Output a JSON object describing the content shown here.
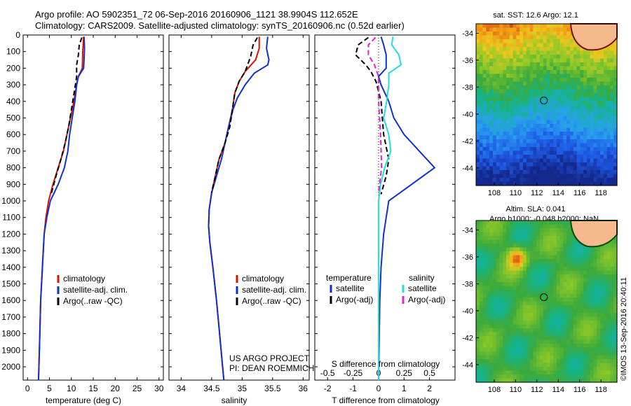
{
  "header": {
    "line1": "Argo profile: AO 5902351_72 06-Sep-2016 20160906_1121 38.9904S 112.652E",
    "line2": "Climatology: CARS2009. Satellite-adjusted climatology: synTS_20160906.nc (0.52d earlier)"
  },
  "colors": {
    "climatology": "#dd1100",
    "satellite": "#1030d0",
    "argo": "#000000",
    "salinity_sat": "#22dddd",
    "salinity_argo": "#dd22dd",
    "land": "#f6b98c"
  },
  "credit": {
    "project": "US ARGO PROJECT",
    "pi": "PI: DEAN ROEMMICH",
    "watermark": "©IMOS 13-Sep-2016 20:40:11"
  },
  "chart_data": [
    {
      "type": "line",
      "id": "temperature",
      "xlabel": "temperature (deg C)",
      "xlim": [
        -1,
        31
      ],
      "ylim": [
        2080,
        0
      ],
      "xticks": [
        "0",
        "5",
        "10",
        "15",
        "20",
        "25",
        "30"
      ],
      "yticks": [
        "0",
        "100",
        "200",
        "300",
        "400",
        "500",
        "600",
        "700",
        "800",
        "900",
        "1000",
        "1100",
        "1200",
        "1300",
        "1400",
        "1500",
        "1600",
        "1700",
        "1800",
        "1900",
        "2000"
      ],
      "legend": [
        "climatology",
        "satellite-adj. clim.",
        "Argo(..raw -QC)"
      ],
      "series": [
        {
          "name": "climatology",
          "points": [
            [
              12.8,
              10
            ],
            [
              12.6,
              100
            ],
            [
              12.5,
              200
            ],
            [
              11.6,
              250
            ],
            [
              11.2,
              300
            ],
            [
              10.6,
              400
            ],
            [
              9.8,
              500
            ],
            [
              9.0,
              600
            ],
            [
              8.2,
              700
            ],
            [
              7.0,
              800
            ],
            [
              5.8,
              900
            ],
            [
              4.8,
              1000
            ],
            [
              4.2,
              1100
            ],
            [
              3.8,
              1200
            ],
            [
              3.4,
              1400
            ],
            [
              3.0,
              1600
            ],
            [
              2.8,
              1800
            ],
            [
              2.6,
              2000
            ],
            [
              2.5,
              2080
            ]
          ]
        },
        {
          "name": "satellite-adj. clim.",
          "points": [
            [
              12.9,
              10
            ],
            [
              13.0,
              80
            ],
            [
              12.9,
              150
            ],
            [
              12.8,
              200
            ],
            [
              11.6,
              250
            ],
            [
              11.2,
              300
            ],
            [
              10.8,
              400
            ],
            [
              10.2,
              500
            ],
            [
              9.6,
              600
            ],
            [
              9.2,
              700
            ],
            [
              8.4,
              800
            ],
            [
              7.0,
              900
            ],
            [
              5.2,
              1000
            ],
            [
              4.4,
              1100
            ],
            [
              3.8,
              1200
            ],
            [
              3.4,
              1400
            ],
            [
              3.0,
              1600
            ],
            [
              2.8,
              1800
            ],
            [
              2.6,
              2000
            ],
            [
              2.5,
              2080
            ]
          ]
        },
        {
          "name": "Argo(..raw -QC)",
          "points": [
            [
              12.4,
              15
            ],
            [
              11.8,
              60
            ],
            [
              11.6,
              120
            ],
            [
              11.2,
              180
            ],
            [
              11.2,
              250
            ],
            [
              10.8,
              320
            ],
            [
              10.0,
              450
            ],
            [
              9.4,
              550
            ],
            [
              8.6,
              650
            ],
            [
              7.6,
              750
            ],
            [
              6.5,
              850
            ],
            [
              5.4,
              960
            ]
          ]
        }
      ]
    },
    {
      "type": "line",
      "id": "salinity",
      "xlabel": "salinity",
      "xlim": [
        33.8,
        36.1
      ],
      "ylim": [
        2080,
        0
      ],
      "xticks": [
        "34",
        "34.5",
        "35",
        "35.5",
        "36"
      ],
      "legend": [
        "climatology",
        "satellite-adj. clim.",
        "Argo(..raw -QC)"
      ],
      "series": [
        {
          "name": "climatology",
          "points": [
            [
              35.28,
              10
            ],
            [
              35.28,
              80
            ],
            [
              35.22,
              150
            ],
            [
              35.05,
              220
            ],
            [
              34.95,
              280
            ],
            [
              34.88,
              350
            ],
            [
              34.84,
              450
            ],
            [
              34.78,
              550
            ],
            [
              34.72,
              650
            ],
            [
              34.62,
              750
            ],
            [
              34.56,
              850
            ],
            [
              34.5,
              950
            ],
            [
              34.46,
              1050
            ],
            [
              34.45,
              1150
            ],
            [
              34.47,
              1250
            ],
            [
              34.52,
              1400
            ],
            [
              34.58,
              1600
            ],
            [
              34.63,
              1800
            ],
            [
              34.68,
              2000
            ],
            [
              34.7,
              2080
            ]
          ]
        },
        {
          "name": "satellite-adj. clim.",
          "points": [
            [
              35.42,
              10
            ],
            [
              35.4,
              80
            ],
            [
              35.44,
              150
            ],
            [
              35.42,
              180
            ],
            [
              35.2,
              230
            ],
            [
              35.05,
              300
            ],
            [
              34.92,
              380
            ],
            [
              34.85,
              450
            ],
            [
              34.78,
              550
            ],
            [
              34.72,
              650
            ],
            [
              34.66,
              750
            ],
            [
              34.58,
              850
            ],
            [
              34.5,
              950
            ],
            [
              34.46,
              1050
            ],
            [
              34.45,
              1150
            ],
            [
              34.47,
              1250
            ],
            [
              34.52,
              1400
            ],
            [
              34.58,
              1600
            ],
            [
              34.63,
              1800
            ],
            [
              34.68,
              2000
            ],
            [
              34.7,
              2080
            ]
          ]
        },
        {
          "name": "Argo(..raw -QC)",
          "points": [
            [
              35.25,
              15
            ],
            [
              35.18,
              60
            ],
            [
              35.14,
              130
            ],
            [
              35.05,
              220
            ],
            [
              34.95,
              280
            ],
            [
              34.88,
              350
            ],
            [
              34.84,
              450
            ],
            [
              34.8,
              550
            ],
            [
              34.72,
              650
            ],
            [
              34.62,
              750
            ],
            [
              34.56,
              850
            ],
            [
              34.5,
              950
            ]
          ]
        }
      ]
    },
    {
      "type": "line",
      "id": "difference",
      "xlabel": "T difference from climatology",
      "toplabel": "S difference from climatology",
      "xlim": [
        -2.5,
        3.0
      ],
      "ylim": [
        2080,
        0
      ],
      "xticks": [
        "-2",
        "-1",
        "0",
        "1",
        "2"
      ],
      "sticks": [
        "-0.5",
        "-0.25",
        "0",
        "0.25",
        "0.5"
      ],
      "legend_title_left": "temperature",
      "legend_title_right": "salinity",
      "legend_left": [
        "satellite",
        "Argo(-adj)"
      ],
      "legend_right": [
        "satellite",
        "Argo(-adj)"
      ],
      "series": [
        {
          "name": "temperature satellite",
          "points": [
            [
              0.1,
              10
            ],
            [
              0.2,
              60
            ],
            [
              0.3,
              120
            ],
            [
              0.3,
              200
            ],
            [
              0.0,
              250
            ],
            [
              0.1,
              300
            ],
            [
              0.4,
              400
            ],
            [
              0.6,
              500
            ],
            [
              1.0,
              600
            ],
            [
              1.6,
              700
            ],
            [
              2.2,
              800
            ],
            [
              1.3,
              900
            ],
            [
              0.4,
              1000
            ],
            [
              0.3,
              1100
            ],
            [
              0.2,
              1200
            ],
            [
              0.1,
              1400
            ],
            [
              0.05,
              1600
            ],
            [
              0.0,
              2080
            ]
          ]
        },
        {
          "name": "temperature Argo(-adj)",
          "points": [
            [
              -0.4,
              15
            ],
            [
              -0.8,
              60
            ],
            [
              -0.9,
              120
            ],
            [
              -0.5,
              180
            ],
            [
              -0.3,
              220
            ],
            [
              -0.1,
              280
            ],
            [
              0.1,
              400
            ],
            [
              0.2,
              600
            ],
            [
              0.4,
              750
            ],
            [
              0.3,
              850
            ],
            [
              0.1,
              960
            ]
          ]
        },
        {
          "name": "salinity satellite",
          "points": [
            [
              0.14,
              10
            ],
            [
              0.13,
              60
            ],
            [
              0.2,
              120
            ],
            [
              0.22,
              180
            ],
            [
              0.1,
              230
            ],
            [
              0.1,
              300
            ],
            [
              0.08,
              400
            ],
            [
              0.05,
              500
            ],
            [
              0.1,
              600
            ],
            [
              0.12,
              700
            ],
            [
              0.06,
              800
            ],
            [
              0.02,
              900
            ],
            [
              0.0,
              1000
            ],
            [
              0.0,
              2080
            ]
          ]
        },
        {
          "name": "salinity Argo(-adj)",
          "points": [
            [
              -0.03,
              15
            ],
            [
              -0.1,
              60
            ],
            [
              -0.1,
              120
            ],
            [
              -0.04,
              180
            ],
            [
              0.0,
              250
            ],
            [
              0.0,
              400
            ],
            [
              0.02,
              600
            ],
            [
              0.03,
              800
            ],
            [
              0.0,
              950
            ]
          ]
        }
      ]
    },
    {
      "type": "heatmap",
      "id": "sst_map",
      "title": "sat. SST: 12.6 Argo: 12.1",
      "xticks": [
        "108",
        "110",
        "112",
        "114",
        "116",
        "118"
      ],
      "yticks": [
        "-34",
        "-36",
        "-38",
        "-40",
        "-42",
        "-44"
      ],
      "xlim": [
        106.3,
        119.5
      ],
      "ylim": [
        -45.3,
        -33.3
      ],
      "marker": [
        112.65,
        -38.99
      ]
    },
    {
      "type": "heatmap",
      "id": "sla_map",
      "title": "Altim. SLA: 0.041",
      "subtitle": "Argo h1000: -0.048 h2000: NaN",
      "xticks": [
        "108",
        "110",
        "112",
        "114",
        "116",
        "118"
      ],
      "yticks": [
        "-34",
        "-36",
        "-38",
        "-40",
        "-42",
        "-44"
      ],
      "xlim": [
        106.3,
        119.5
      ],
      "ylim": [
        -45.3,
        -33.3
      ],
      "marker": [
        112.65,
        -38.99
      ]
    }
  ]
}
